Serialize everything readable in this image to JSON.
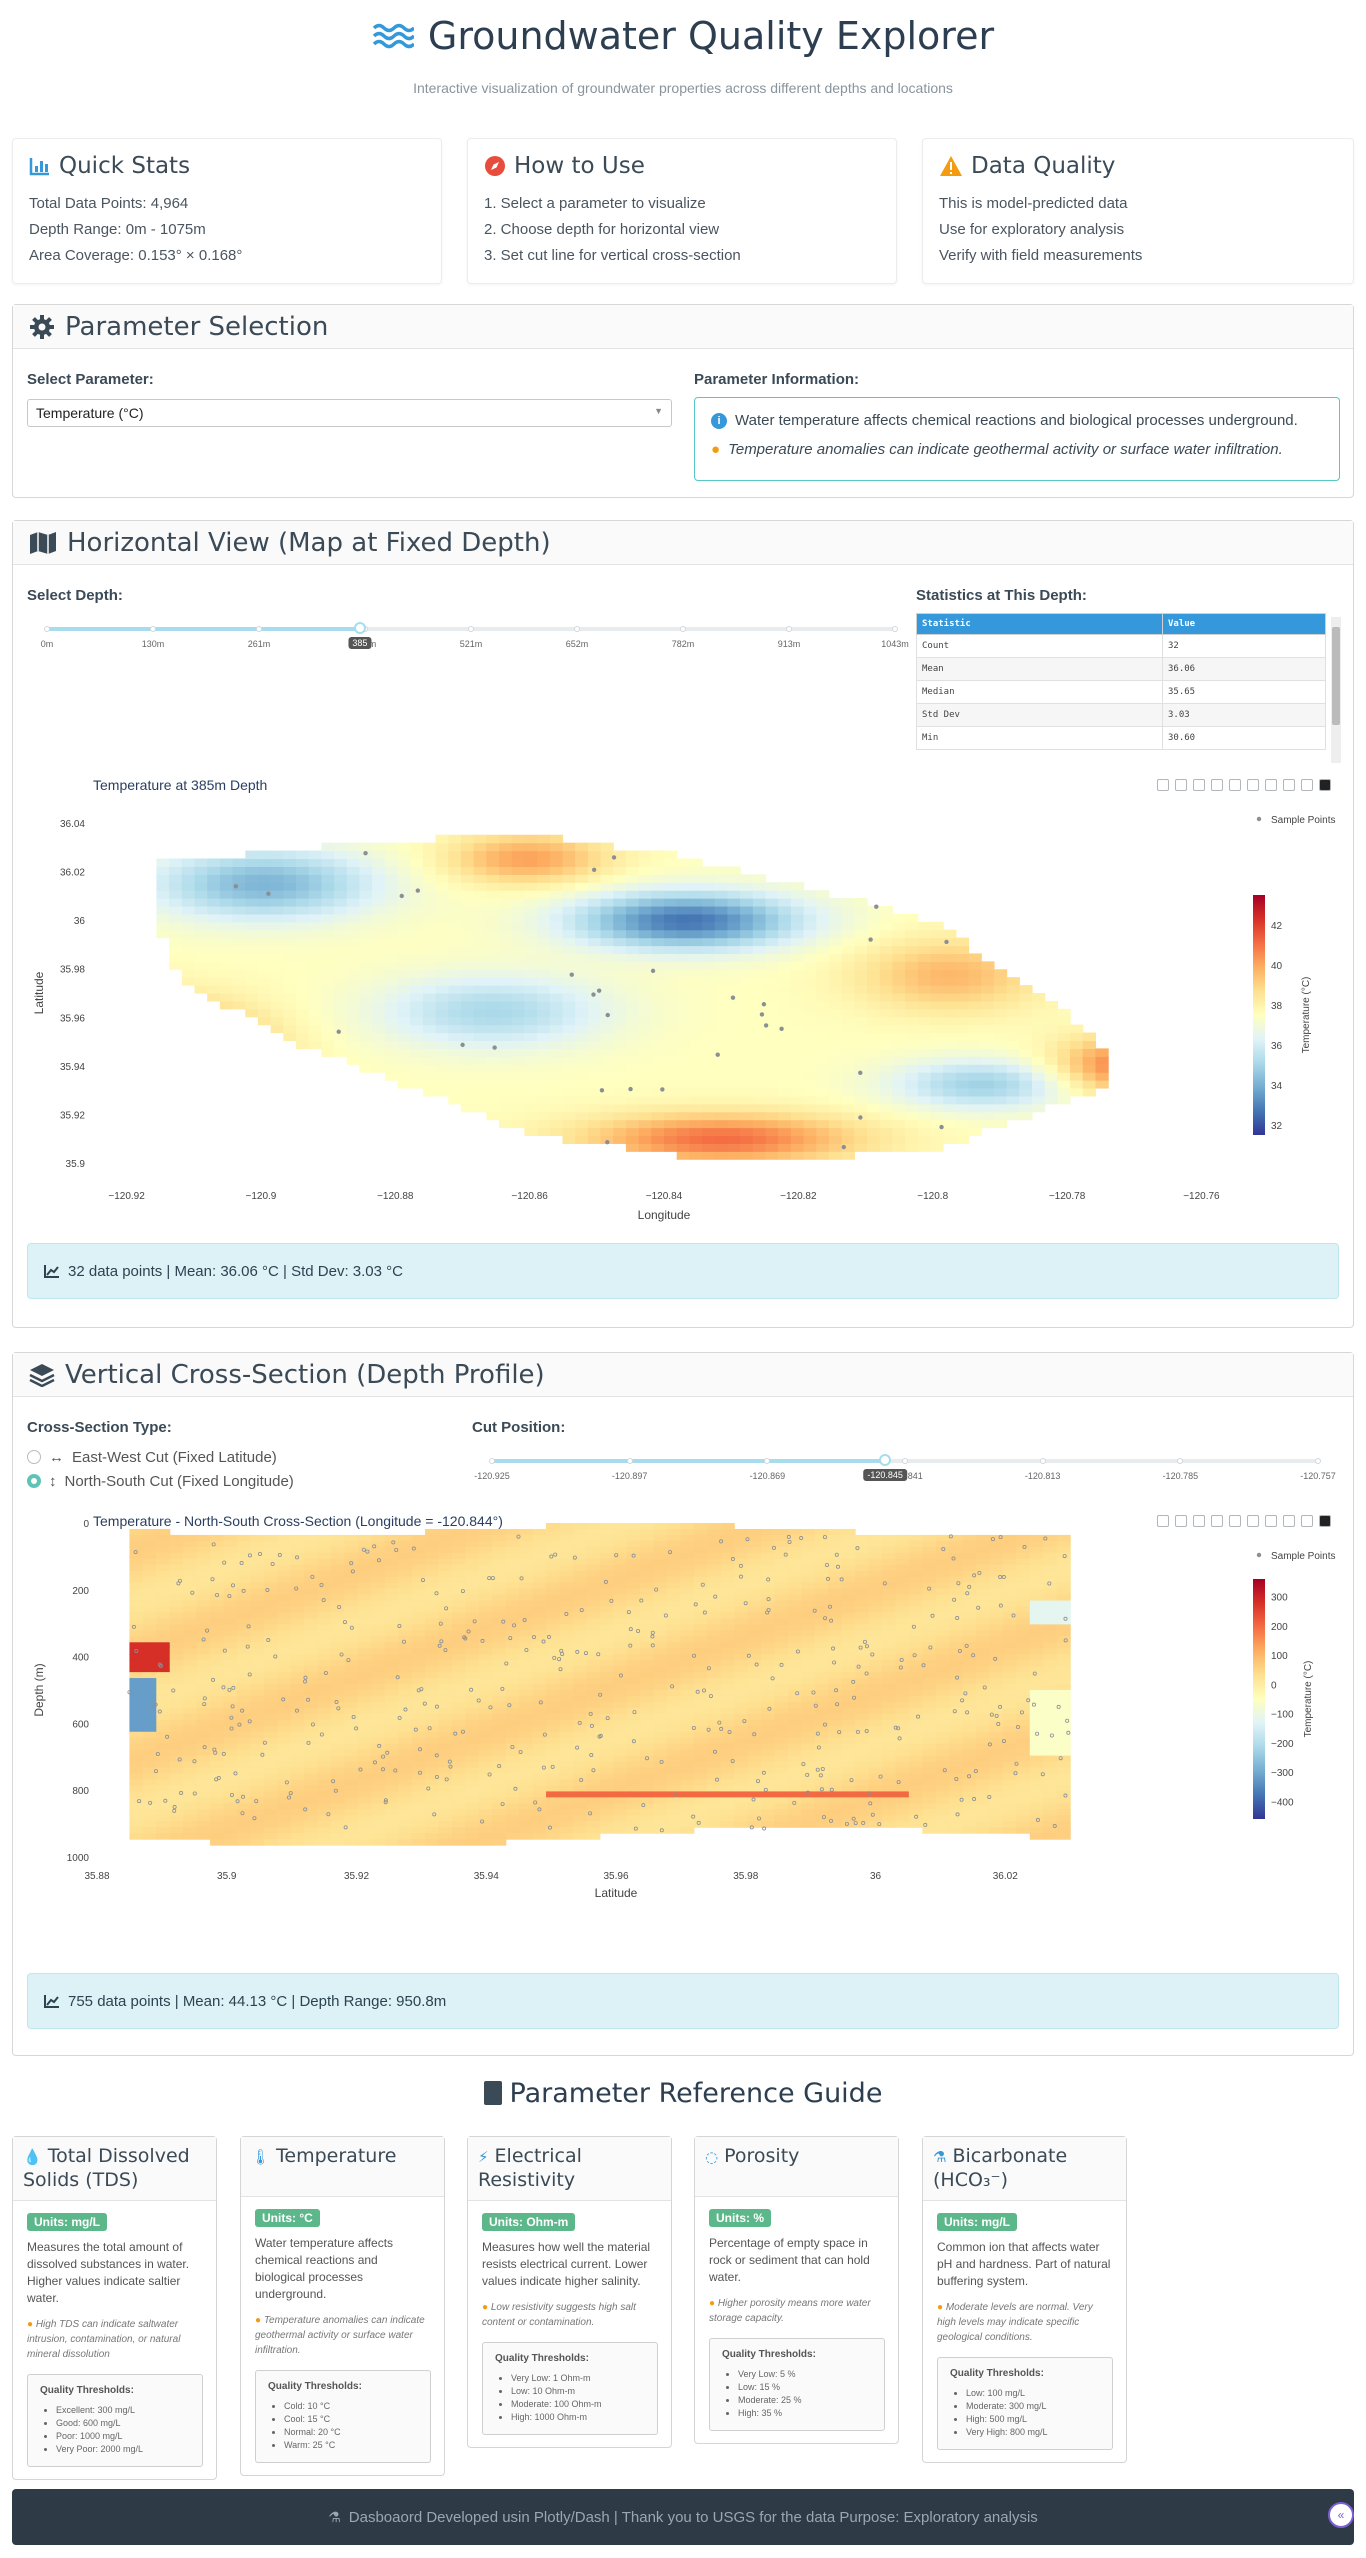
{
  "header": {
    "title": "Groundwater Quality Explorer",
    "subtitle": "Interactive visualization of groundwater properties across different depths and locations"
  },
  "quick_stats": {
    "title": "Quick Stats",
    "lines": [
      "Total Data Points: 4,964",
      "Depth Range: 0m - 1075m",
      "Area Coverage: 0.153° × 0.168°"
    ]
  },
  "how_to": {
    "title": "How to Use",
    "lines": [
      "1. Select a parameter to visualize",
      "2. Choose depth for horizontal view",
      "3. Set cut line for vertical cross-section"
    ]
  },
  "data_quality": {
    "title": "Data Quality",
    "lines": [
      "This is model-predicted data",
      "Use for exploratory analysis",
      "Verify with field measurements"
    ]
  },
  "parameter_selection": {
    "title": "Parameter Selection",
    "select_label": "Select Parameter:",
    "selected": "Temperature (°C)",
    "info_label": "Parameter Information:",
    "info_text": "Water temperature affects chemical reactions and biological processes underground.",
    "info_note": "Temperature anomalies can indicate geothermal activity or surface water infiltration."
  },
  "horizontal": {
    "title": "Horizontal View (Map at Fixed Depth)",
    "depth_label": "Select Depth:",
    "depth_marks": [
      "0m",
      "130m",
      "261m",
      "391m",
      "521m",
      "652m",
      "782m",
      "913m",
      "1043m"
    ],
    "depth_value": "385",
    "depth_fraction": 0.369,
    "stats_label": "Statistics at This Depth:",
    "stats_headers": [
      "Statistic",
      "Value"
    ],
    "stats_rows": [
      [
        "Count",
        "32"
      ],
      [
        "Mean",
        "36.06"
      ],
      [
        "Median",
        "35.65"
      ],
      [
        "Std Dev",
        "3.03"
      ],
      [
        "Min",
        "30.60"
      ]
    ],
    "plot_title": "Temperature at 385m Depth",
    "legend": "Sample Points",
    "summary": "32 data points | Mean: 36.06 °C | Std Dev: 3.03 °C"
  },
  "vertical": {
    "title": "Vertical Cross-Section (Depth Profile)",
    "type_label": "Cross-Section Type:",
    "options": [
      "East-West Cut (Fixed Latitude)",
      "North-South Cut (Fixed Longitude)"
    ],
    "selected_option": 1,
    "cut_label": "Cut Position:",
    "cut_marks": [
      "-120.925",
      "-120.897",
      "-120.869",
      "-120.841",
      "-120.813",
      "-120.785",
      "-120.757"
    ],
    "cut_value": "-120.845",
    "cut_fraction": 0.476,
    "plot_title": "Temperature - North-South Cross-Section (Longitude = -120.844°)",
    "legend": "Sample Points",
    "summary": "755 data points | Mean: 44.13 °C | Depth Range: 950.8m"
  },
  "chart_data": [
    {
      "type": "heatmap",
      "title": "Temperature at 385m Depth",
      "xlabel": "Longitude",
      "ylabel": "Latitude",
      "xlim": [
        -120.925,
        -120.755
      ],
      "ylim": [
        35.895,
        36.045
      ],
      "x_ticks": [
        "−120.92",
        "−120.9",
        "−120.88",
        "−120.86",
        "−120.84",
        "−120.82",
        "−120.8",
        "−120.78",
        "−120.76"
      ],
      "x_tick_values": [
        -120.92,
        -120.9,
        -120.88,
        -120.86,
        -120.84,
        -120.82,
        -120.8,
        -120.78,
        -120.76
      ],
      "y_ticks": [
        "35.9",
        "35.92",
        "35.94",
        "35.96",
        "35.98",
        "36",
        "36.02",
        "36.04"
      ],
      "y_tick_values": [
        35.9,
        35.92,
        35.94,
        35.96,
        35.98,
        36.0,
        36.02,
        36.04
      ],
      "colorbar_title": "Temperature (°C)",
      "colorbar_ticks": [
        "32",
        "34",
        "36",
        "38",
        "40",
        "42"
      ],
      "colorbar_range": [
        31.5,
        43.5
      ],
      "colorscale": [
        "#313695",
        "#4575b4",
        "#74add1",
        "#abd9e9",
        "#e0f3f8",
        "#ffffbf",
        "#fee090",
        "#fdae61",
        "#f46d43",
        "#d73027",
        "#a50026"
      ],
      "legend": "top-right"
    },
    {
      "type": "heatmap",
      "title": "Temperature - North-South Cross-Section (Longitude = -120.844°)",
      "xlabel": "Latitude",
      "ylabel": "Depth (m)",
      "xlim": [
        35.88,
        36.04
      ],
      "ylim": [
        1000,
        0
      ],
      "x_ticks": [
        "35.88",
        "35.9",
        "35.92",
        "35.94",
        "35.96",
        "35.98",
        "36",
        "36.02"
      ],
      "x_tick_values": [
        35.88,
        35.9,
        35.92,
        35.94,
        35.96,
        35.98,
        36.0,
        36.02
      ],
      "y_ticks": [
        "0",
        "200",
        "400",
        "600",
        "800",
        "1000"
      ],
      "y_tick_values": [
        0,
        200,
        400,
        600,
        800,
        1000
      ],
      "colorbar_title": "Temperature (°C)",
      "colorbar_ticks": [
        "300",
        "200",
        "100",
        "0",
        "−100",
        "−200",
        "−300",
        "−400"
      ],
      "colorbar_tick_values": [
        300,
        200,
        100,
        0,
        -100,
        -200,
        -300,
        -400
      ],
      "colorbar_range": [
        -460,
        360
      ],
      "legend": "top-right"
    }
  ],
  "guide": {
    "title": "Parameter Reference Guide",
    "cards": [
      {
        "title": "Total Dissolved Solids (TDS)",
        "icon": "droplet-icon",
        "units": "Units: mg/L",
        "desc": "Measures the total amount of dissolved substances in water. Higher values indicate saltier water.",
        "note": "High TDS can indicate saltwater intrusion, contamination, or natural mineral dissolution",
        "thresholds_title": "Quality Thresholds:",
        "thresholds": [
          "Excellent: 300 mg/L",
          "Good: 600 mg/L",
          "Poor: 1000 mg/L",
          "Very Poor: 2000 mg/L"
        ]
      },
      {
        "title": "Temperature",
        "icon": "thermometer-icon",
        "units": "Units: °C",
        "desc": "Water temperature affects chemical reactions and biological processes underground.",
        "note": "Temperature anomalies can indicate geothermal activity or surface water infiltration.",
        "thresholds_title": "Quality Thresholds:",
        "thresholds": [
          "Cold: 10 °C",
          "Cool: 15 °C",
          "Normal: 20 °C",
          "Warm: 25 °C"
        ]
      },
      {
        "title": "Electrical Resistivity",
        "icon": "bolt-icon",
        "units": "Units: Ohm-m",
        "desc": "Measures how well the material resists electrical current. Lower values indicate higher salinity.",
        "note": "Low resistivity suggests high salt content or contamination.",
        "thresholds_title": "Quality Thresholds:",
        "thresholds": [
          "Very Low: 1 Ohm-m",
          "Low: 10 Ohm-m",
          "Moderate: 100 Ohm-m",
          "High: 1000 Ohm-m"
        ]
      },
      {
        "title": "Porosity",
        "icon": "circle-notch-icon",
        "units": "Units: %",
        "desc": "Percentage of empty space in rock or sediment that can hold water.",
        "note": "Higher porosity means more water storage capacity.",
        "thresholds_title": "Quality Thresholds:",
        "thresholds": [
          "Very Low: 5 %",
          "Low: 15 %",
          "Moderate: 25 %",
          "High: 35 %"
        ]
      },
      {
        "title": "Bicarbonate (HCO₃⁻)",
        "icon": "flask-icon",
        "units": "Units: mg/L",
        "desc": "Common ion that affects water pH and hardness. Part of natural buffering system.",
        "note": "Moderate levels are normal. Very high levels may indicate specific geological conditions.",
        "thresholds_title": "Quality Thresholds:",
        "thresholds": [
          "Low: 100 mg/L",
          "Moderate: 300 mg/L",
          "High: 500 mg/L",
          "Very High: 800 mg/L"
        ]
      }
    ]
  },
  "footer": {
    "text": "Dasboaord Developed usin Plotly/Dash |   Thank you to USGS for the data Purpose: Exploratory analysis"
  },
  "colors": {
    "accent": "#3498db",
    "info_border": "#56c7c7",
    "summary_bg": "#ddf2f6",
    "badge": "#5cb88a",
    "footer_bg": "#2e3a46"
  }
}
